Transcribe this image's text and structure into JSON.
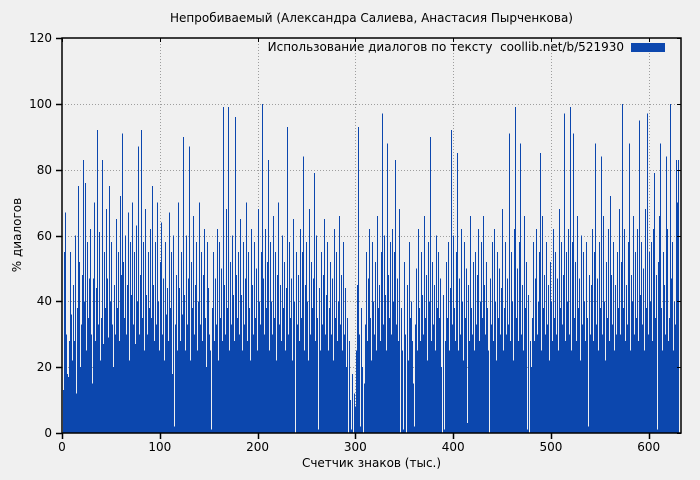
{
  "chart_data": {
    "type": "bar",
    "title": "Непробиваемый (Александра Салиева, Анастасия Пырченкова)",
    "legend_label": "Использование диалогов по тексту  coollib.net/b/521930",
    "xlabel": "Счетчик знаков (тыс.)",
    "ylabel": "% диалогов",
    "xlim": [
      0,
      633
    ],
    "ylim": [
      0,
      120
    ],
    "x_ticks": [
      0,
      100,
      200,
      300,
      400,
      500,
      600
    ],
    "y_ticks": [
      0,
      20,
      40,
      60,
      80,
      100,
      120
    ],
    "grid": true,
    "legend_position": "top-right-inside",
    "bar_color": "#0c47ae",
    "grid_color": "#9e9e9e",
    "background": "#f0f0f0",
    "x_start": 1,
    "x_step": 1,
    "values": [
      13,
      55,
      67,
      30,
      18,
      17,
      28,
      55,
      36,
      22,
      45,
      28,
      60,
      12,
      38,
      75,
      52,
      20,
      33,
      48,
      83,
      40,
      27,
      76,
      25,
      58,
      35,
      47,
      62,
      30,
      15,
      47,
      70,
      28,
      44,
      92,
      33,
      61,
      22,
      35,
      83,
      27,
      55,
      38,
      68,
      47,
      29,
      75,
      40,
      58,
      33,
      20,
      45,
      30,
      65,
      38,
      55,
      28,
      72,
      48,
      91,
      52,
      35,
      60,
      30,
      45,
      67,
      0,
      22,
      58,
      42,
      70,
      33,
      55,
      27,
      63,
      40,
      87,
      30,
      48,
      92,
      35,
      58,
      25,
      68,
      42,
      30,
      55,
      38,
      62,
      35,
      75,
      45,
      28,
      58,
      33,
      70,
      40,
      25,
      52,
      64,
      30,
      47,
      22,
      58,
      36,
      44,
      28,
      67,
      38,
      55,
      18,
      42,
      60,
      2,
      33,
      48,
      25,
      70,
      44,
      28,
      55,
      36,
      90,
      42,
      25,
      60,
      33,
      47,
      87,
      22,
      52,
      38,
      66,
      30,
      45,
      58,
      25,
      40,
      70,
      33,
      55,
      28,
      48,
      62,
      35,
      20,
      58,
      44,
      30,
      25,
      1,
      38,
      55,
      28,
      47,
      33,
      62,
      40,
      22,
      58,
      35,
      50,
      28,
      99,
      45,
      30,
      68,
      38,
      99,
      25,
      52,
      33,
      60,
      42,
      28,
      96,
      48,
      35,
      55,
      30,
      65,
      42,
      25,
      58,
      33,
      47,
      70,
      28,
      55,
      38,
      22,
      62,
      45,
      30,
      58,
      35,
      50,
      25,
      68,
      40,
      33,
      55,
      28,
      100,
      47,
      30,
      62,
      38,
      52,
      83,
      25,
      58,
      40,
      30,
      66,
      35,
      55,
      22,
      48,
      70,
      33,
      45,
      28,
      60,
      38,
      52,
      25,
      44,
      93,
      30,
      58,
      35,
      47,
      22,
      65,
      40,
      0,
      55,
      33,
      48,
      28,
      62,
      35,
      55,
      84,
      25,
      45,
      33,
      58,
      40,
      22,
      68,
      30,
      52,
      38,
      47,
      79,
      28,
      60,
      35,
      1,
      44,
      25,
      55,
      33,
      48,
      65,
      30,
      42,
      58,
      25,
      38,
      52,
      30,
      47,
      22,
      62,
      35,
      55,
      28,
      40,
      66,
      33,
      48,
      25,
      58,
      30,
      44,
      20,
      35,
      0,
      15,
      28,
      10,
      1,
      18,
      0,
      12,
      8,
      25,
      45,
      93,
      30,
      2,
      38,
      20,
      0,
      15,
      33,
      55,
      28,
      47,
      62,
      35,
      22,
      58,
      40,
      30,
      52,
      25,
      66,
      38,
      45,
      28,
      55,
      97,
      33,
      60,
      42,
      25,
      88,
      48,
      35,
      58,
      30,
      62,
      40,
      22,
      55,
      83,
      33,
      47,
      28,
      68,
      0,
      38,
      25,
      1,
      52,
      30,
      0,
      45,
      22,
      58,
      35,
      40,
      28,
      15,
      2,
      33,
      50,
      25,
      62,
      38,
      28,
      55,
      42,
      30,
      66,
      35,
      48,
      22,
      58,
      40,
      90,
      28,
      52,
      33,
      45,
      25,
      60,
      38,
      30,
      55,
      35,
      47,
      20,
      0,
      42,
      1,
      28,
      52,
      35,
      58,
      25,
      44,
      92,
      33,
      60,
      38,
      28,
      55,
      85,
      25,
      47,
      30,
      62,
      40,
      22,
      58,
      35,
      50,
      3,
      45,
      28,
      66,
      38,
      30,
      52,
      25,
      55,
      33,
      48,
      62,
      28,
      40,
      58,
      35,
      22,
      66,
      45,
      30,
      52,
      38,
      25,
      0,
      47,
      33,
      58,
      28,
      62,
      40,
      22,
      55,
      35,
      50,
      30,
      44,
      68,
      25,
      38,
      58,
      30,
      47,
      33,
      91,
      28,
      55,
      40,
      22,
      62,
      99,
      35,
      50,
      28,
      58,
      88,
      30,
      45,
      25,
      66,
      38,
      52,
      33,
      1,
      42,
      0,
      28,
      20,
      35,
      58,
      28,
      47,
      62,
      30,
      40,
      55,
      85,
      25,
      66,
      38,
      48,
      30,
      58,
      33,
      45,
      22,
      52,
      40,
      28,
      62,
      35,
      55,
      30,
      47,
      25,
      68,
      38,
      58,
      33,
      48,
      97,
      28,
      55,
      40,
      62,
      30,
      99,
      45,
      25,
      58,
      91,
      35,
      52,
      28,
      66,
      38,
      47,
      22,
      60,
      33,
      55,
      40,
      28,
      58,
      35,
      2,
      48,
      30,
      45,
      62,
      28,
      55,
      88,
      33,
      47,
      25,
      58,
      38,
      84,
      30,
      66,
      40,
      22,
      52,
      35,
      62,
      28,
      72,
      48,
      33,
      58,
      25,
      0,
      45,
      30,
      55,
      38,
      68,
      30,
      52,
      100,
      38,
      62,
      28,
      45,
      33,
      58,
      88,
      25,
      48,
      40,
      66,
      30,
      55,
      35,
      62,
      28,
      95,
      42,
      58,
      33,
      50,
      25,
      68,
      38,
      97,
      30,
      55,
      40,
      58,
      28,
      62,
      79,
      35,
      48,
      1,
      52,
      30,
      66,
      88,
      38,
      25,
      55,
      45,
      30,
      84,
      62,
      28,
      35,
      100,
      47,
      58,
      25,
      40,
      33,
      83,
      70,
      83
    ]
  }
}
